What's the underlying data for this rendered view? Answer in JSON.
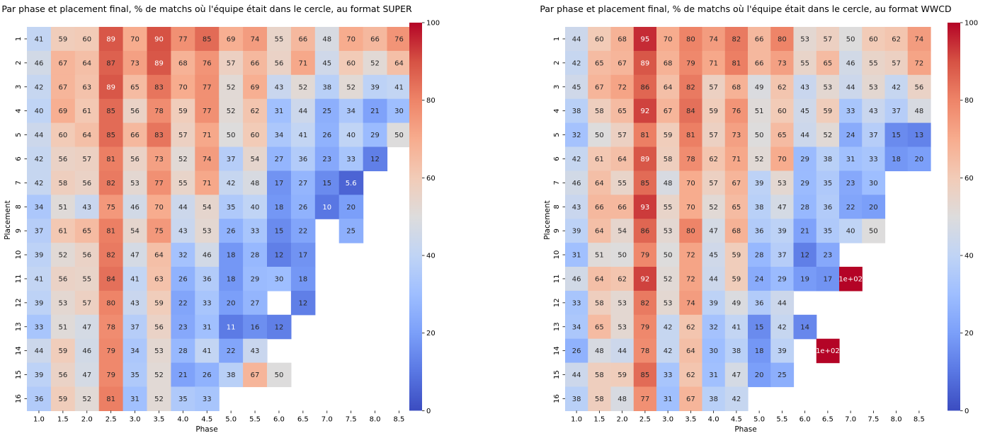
{
  "chart_data": [
    {
      "type": "heatmap",
      "title": "Par phase et placement final, % de matchs où l'équipe était dans le cercle, au format SUPER",
      "xlabel": "Phase",
      "ylabel": "Placement",
      "x": [
        "1.0",
        "1.5",
        "2.0",
        "2.5",
        "3.0",
        "3.5",
        "4.0",
        "4.5",
        "5.0",
        "5.5",
        "6.0",
        "6.5",
        "7.0",
        "7.5",
        "8.0",
        "8.5"
      ],
      "y": [
        "1",
        "2",
        "3",
        "4",
        "5",
        "6",
        "7",
        "8",
        "9",
        "10",
        "11",
        "12",
        "13",
        "14",
        "15",
        "16"
      ],
      "colormap": "coolwarm",
      "vmin": 0,
      "vmax": 100,
      "colorbar_ticks": [
        0,
        20,
        40,
        60,
        80,
        100
      ],
      "values": [
        [
          41,
          59,
          60,
          89,
          70,
          90,
          77,
          85,
          69,
          74,
          55,
          66,
          48,
          70,
          66,
          76
        ],
        [
          46,
          67,
          64,
          87,
          73,
          89,
          68,
          76,
          57,
          66,
          56,
          71,
          45,
          60,
          52,
          64
        ],
        [
          42,
          67,
          63,
          89,
          65,
          83,
          70,
          77,
          52,
          69,
          43,
          52,
          38,
          52,
          39,
          41
        ],
        [
          40,
          69,
          61,
          85,
          56,
          78,
          59,
          77,
          52,
          62,
          31,
          44,
          25,
          34,
          21,
          30
        ],
        [
          44,
          60,
          64,
          85,
          66,
          83,
          57,
          71,
          50,
          60,
          34,
          41,
          26,
          40,
          29,
          50
        ],
        [
          42,
          56,
          57,
          81,
          56,
          73,
          52,
          74,
          37,
          54,
          27,
          36,
          23,
          33,
          12,
          null
        ],
        [
          42,
          58,
          56,
          82,
          53,
          77,
          55,
          71,
          42,
          48,
          17,
          27,
          15,
          5.6,
          null,
          null
        ],
        [
          34,
          51,
          43,
          75,
          46,
          70,
          44,
          54,
          35,
          40,
          18,
          26,
          10,
          20,
          null,
          null
        ],
        [
          37,
          61,
          65,
          81,
          54,
          75,
          43,
          53,
          26,
          33,
          15,
          22,
          null,
          25,
          null,
          null
        ],
        [
          39,
          52,
          56,
          82,
          47,
          64,
          32,
          46,
          18,
          28,
          12,
          17,
          null,
          null,
          null,
          null
        ],
        [
          41,
          56,
          55,
          84,
          41,
          63,
          26,
          36,
          18,
          29,
          30,
          18,
          null,
          null,
          null,
          null
        ],
        [
          39,
          53,
          57,
          80,
          43,
          59,
          22,
          33,
          20,
          27,
          null,
          12,
          null,
          null,
          null,
          null
        ],
        [
          33,
          51,
          47,
          78,
          37,
          56,
          23,
          31,
          11,
          16,
          12,
          null,
          null,
          null,
          null,
          null
        ],
        [
          44,
          59,
          46,
          79,
          34,
          53,
          28,
          41,
          22,
          43,
          null,
          null,
          null,
          null,
          null,
          null
        ],
        [
          39,
          56,
          47,
          79,
          35,
          52,
          21,
          26,
          38,
          67,
          50,
          null,
          null,
          null,
          null,
          null
        ],
        [
          36,
          59,
          52,
          81,
          31,
          52,
          35,
          33,
          null,
          null,
          null,
          null,
          null,
          null,
          null,
          null
        ]
      ],
      "labels": [
        [
          "41",
          "59",
          "60",
          "89",
          "70",
          "90",
          "77",
          "85",
          "69",
          "74",
          "55",
          "66",
          "48",
          "70",
          "66",
          "76"
        ],
        [
          "46",
          "67",
          "64",
          "87",
          "73",
          "89",
          "68",
          "76",
          "57",
          "66",
          "56",
          "71",
          "45",
          "60",
          "52",
          "64"
        ],
        [
          "42",
          "67",
          "63",
          "89",
          "65",
          "83",
          "70",
          "77",
          "52",
          "69",
          "43",
          "52",
          "38",
          "52",
          "39",
          "41"
        ],
        [
          "40",
          "69",
          "61",
          "85",
          "56",
          "78",
          "59",
          "77",
          "52",
          "62",
          "31",
          "44",
          "25",
          "34",
          "21",
          "30"
        ],
        [
          "44",
          "60",
          "64",
          "85",
          "66",
          "83",
          "57",
          "71",
          "50",
          "60",
          "34",
          "41",
          "26",
          "40",
          "29",
          "50"
        ],
        [
          "42",
          "56",
          "57",
          "81",
          "56",
          "73",
          "52",
          "74",
          "37",
          "54",
          "27",
          "36",
          "23",
          "33",
          "12",
          ""
        ],
        [
          "42",
          "58",
          "56",
          "82",
          "53",
          "77",
          "55",
          "71",
          "42",
          "48",
          "17",
          "27",
          "15",
          "5.6",
          "",
          ""
        ],
        [
          "34",
          "51",
          "43",
          "75",
          "46",
          "70",
          "44",
          "54",
          "35",
          "40",
          "18",
          "26",
          "10",
          "20",
          "",
          ""
        ],
        [
          "37",
          "61",
          "65",
          "81",
          "54",
          "75",
          "43",
          "53",
          "26",
          "33",
          "15",
          "22",
          "",
          "25",
          "",
          ""
        ],
        [
          "39",
          "52",
          "56",
          "82",
          "47",
          "64",
          "32",
          "46",
          "18",
          "28",
          "12",
          "17",
          "",
          "",
          "",
          ""
        ],
        [
          "41",
          "56",
          "55",
          "84",
          "41",
          "63",
          "26",
          "36",
          "18",
          "29",
          "30",
          "18",
          "",
          "",
          "",
          ""
        ],
        [
          "39",
          "53",
          "57",
          "80",
          "43",
          "59",
          "22",
          "33",
          "20",
          "27",
          "",
          "12",
          "",
          "",
          "",
          ""
        ],
        [
          "33",
          "51",
          "47",
          "78",
          "37",
          "56",
          "23",
          "31",
          "11",
          "16",
          "12",
          "",
          "",
          "",
          "",
          ""
        ],
        [
          "44",
          "59",
          "46",
          "79",
          "34",
          "53",
          "28",
          "41",
          "22",
          "43",
          "",
          "",
          "",
          "",
          "",
          ""
        ],
        [
          "39",
          "56",
          "47",
          "79",
          "35",
          "52",
          "21",
          "26",
          "38",
          "67",
          "50",
          "",
          "",
          "",
          "",
          ""
        ],
        [
          "36",
          "59",
          "52",
          "81",
          "31",
          "52",
          "35",
          "33",
          "",
          "",
          "",
          "",
          "",
          "",
          "",
          ""
        ]
      ]
    },
    {
      "type": "heatmap",
      "title": "Par phase et placement final, % de matchs où l'équipe était dans le cercle, au format WWCD",
      "xlabel": "Phase",
      "ylabel": "Placement",
      "x": [
        "1.0",
        "1.5",
        "2.0",
        "2.5",
        "3.0",
        "3.5",
        "4.0",
        "4.5",
        "5.0",
        "5.5",
        "6.0",
        "6.5",
        "7.0",
        "7.5",
        "8.0",
        "8.5"
      ],
      "y": [
        "1",
        "2",
        "3",
        "4",
        "5",
        "6",
        "7",
        "8",
        "9",
        "10",
        "11",
        "12",
        "13",
        "14",
        "15",
        "16"
      ],
      "colormap": "coolwarm",
      "vmin": 0,
      "vmax": 100,
      "colorbar_ticks": [
        0,
        20,
        40,
        60,
        80,
        100
      ],
      "values": [
        [
          44,
          60,
          68,
          95,
          70,
          80,
          74,
          82,
          66,
          80,
          53,
          57,
          50,
          60,
          62,
          74
        ],
        [
          42,
          65,
          67,
          89,
          68,
          79,
          71,
          81,
          66,
          73,
          55,
          65,
          46,
          55,
          57,
          72
        ],
        [
          45,
          67,
          72,
          86,
          64,
          82,
          57,
          68,
          49,
          62,
          43,
          53,
          44,
          53,
          42,
          56
        ],
        [
          38,
          58,
          65,
          92,
          67,
          84,
          59,
          76,
          51,
          60,
          45,
          59,
          33,
          43,
          37,
          48
        ],
        [
          32,
          50,
          57,
          81,
          59,
          81,
          57,
          73,
          50,
          65,
          44,
          52,
          24,
          37,
          15,
          13
        ],
        [
          42,
          61,
          64,
          89,
          58,
          78,
          62,
          71,
          52,
          70,
          29,
          38,
          31,
          33,
          18,
          20
        ],
        [
          46,
          64,
          55,
          85,
          48,
          70,
          57,
          67,
          39,
          53,
          29,
          35,
          23,
          30,
          null,
          null
        ],
        [
          43,
          66,
          66,
          93,
          55,
          70,
          52,
          65,
          38,
          47,
          28,
          36,
          22,
          20,
          null,
          null
        ],
        [
          39,
          64,
          54,
          86,
          53,
          80,
          47,
          68,
          36,
          39,
          21,
          35,
          40,
          50,
          null,
          null
        ],
        [
          31,
          51,
          50,
          79,
          50,
          72,
          45,
          59,
          28,
          37,
          12,
          23,
          null,
          null,
          null,
          null
        ],
        [
          46,
          64,
          62,
          92,
          52,
          72,
          44,
          59,
          24,
          29,
          19,
          17,
          100,
          null,
          null,
          null
        ],
        [
          33,
          58,
          53,
          82,
          53,
          74,
          39,
          49,
          36,
          44,
          null,
          null,
          null,
          null,
          null,
          null
        ],
        [
          34,
          65,
          53,
          79,
          42,
          62,
          32,
          41,
          15,
          42,
          14,
          null,
          null,
          null,
          null,
          null
        ],
        [
          26,
          48,
          44,
          78,
          42,
          64,
          30,
          38,
          18,
          39,
          null,
          100,
          null,
          null,
          null,
          null
        ],
        [
          44,
          58,
          59,
          85,
          33,
          62,
          31,
          47,
          20,
          25,
          null,
          null,
          null,
          null,
          null,
          null
        ],
        [
          38,
          58,
          48,
          77,
          31,
          67,
          38,
          42,
          null,
          null,
          null,
          null,
          null,
          null,
          null,
          null
        ]
      ],
      "labels": [
        [
          "44",
          "60",
          "68",
          "95",
          "70",
          "80",
          "74",
          "82",
          "66",
          "80",
          "53",
          "57",
          "50",
          "60",
          "62",
          "74"
        ],
        [
          "42",
          "65",
          "67",
          "89",
          "68",
          "79",
          "71",
          "81",
          "66",
          "73",
          "55",
          "65",
          "46",
          "55",
          "57",
          "72"
        ],
        [
          "45",
          "67",
          "72",
          "86",
          "64",
          "82",
          "57",
          "68",
          "49",
          "62",
          "43",
          "53",
          "44",
          "53",
          "42",
          "56"
        ],
        [
          "38",
          "58",
          "65",
          "92",
          "67",
          "84",
          "59",
          "76",
          "51",
          "60",
          "45",
          "59",
          "33",
          "43",
          "37",
          "48"
        ],
        [
          "32",
          "50",
          "57",
          "81",
          "59",
          "81",
          "57",
          "73",
          "50",
          "65",
          "44",
          "52",
          "24",
          "37",
          "15",
          "13"
        ],
        [
          "42",
          "61",
          "64",
          "89",
          "58",
          "78",
          "62",
          "71",
          "52",
          "70",
          "29",
          "38",
          "31",
          "33",
          "18",
          "20"
        ],
        [
          "46",
          "64",
          "55",
          "85",
          "48",
          "70",
          "57",
          "67",
          "39",
          "53",
          "29",
          "35",
          "23",
          "30",
          "",
          ""
        ],
        [
          "43",
          "66",
          "66",
          "93",
          "55",
          "70",
          "52",
          "65",
          "38",
          "47",
          "28",
          "36",
          "22",
          "20",
          "",
          ""
        ],
        [
          "39",
          "64",
          "54",
          "86",
          "53",
          "80",
          "47",
          "68",
          "36",
          "39",
          "21",
          "35",
          "40",
          "50",
          "",
          ""
        ],
        [
          "31",
          "51",
          "50",
          "79",
          "50",
          "72",
          "45",
          "59",
          "28",
          "37",
          "12",
          "23",
          "",
          "",
          "",
          ""
        ],
        [
          "46",
          "64",
          "62",
          "92",
          "52",
          "72",
          "44",
          "59",
          "24",
          "29",
          "19",
          "17",
          "1e+02",
          "",
          "",
          ""
        ],
        [
          "33",
          "58",
          "53",
          "82",
          "53",
          "74",
          "39",
          "49",
          "36",
          "44",
          "",
          "",
          "",
          "",
          "",
          ""
        ],
        [
          "34",
          "65",
          "53",
          "79",
          "42",
          "62",
          "32",
          "41",
          "15",
          "42",
          "14",
          "",
          "",
          "",
          "",
          ""
        ],
        [
          "26",
          "48",
          "44",
          "78",
          "42",
          "64",
          "30",
          "38",
          "18",
          "39",
          "",
          "1e+02",
          "",
          "",
          "",
          ""
        ],
        [
          "44",
          "58",
          "59",
          "85",
          "33",
          "62",
          "31",
          "47",
          "20",
          "25",
          "",
          "",
          "",
          "",
          "",
          ""
        ],
        [
          "38",
          "58",
          "48",
          "77",
          "31",
          "67",
          "38",
          "42",
          "",
          "",
          "",
          "",
          "",
          "",
          "",
          ""
        ]
      ]
    }
  ]
}
